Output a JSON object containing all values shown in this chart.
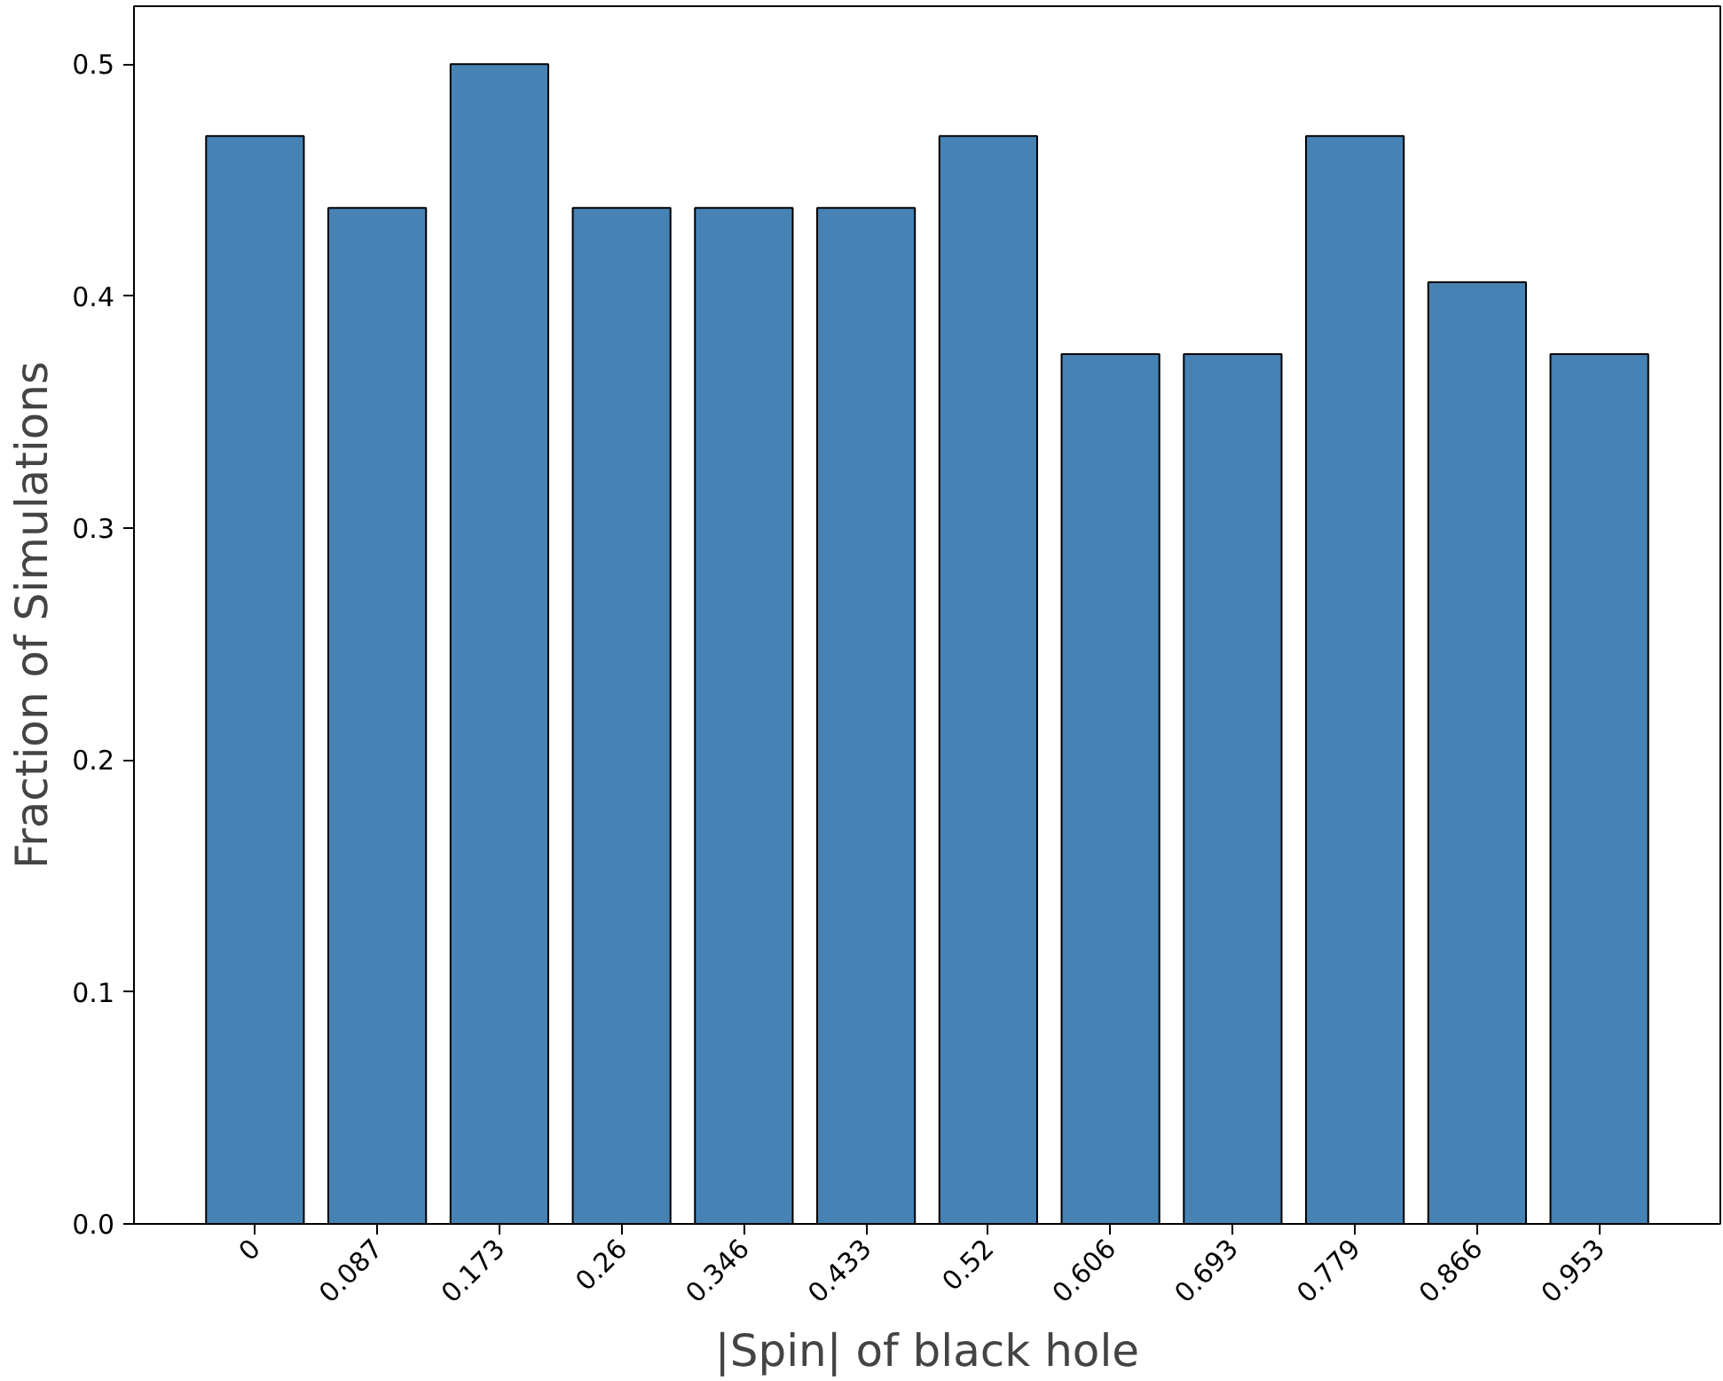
{
  "chart_data": {
    "type": "bar",
    "xlabel": "|Spin| of black hole",
    "ylabel": "Fraction of Simulations",
    "categories": [
      "0",
      "0.087",
      "0.173",
      "0.26",
      "0.346",
      "0.433",
      "0.52",
      "0.606",
      "0.693",
      "0.779",
      "0.866",
      "0.953"
    ],
    "values": [
      0.469,
      0.438,
      0.5,
      0.438,
      0.438,
      0.438,
      0.469,
      0.375,
      0.375,
      0.469,
      0.406,
      0.375
    ],
    "color": "#4682b4",
    "ylim": [
      0,
      0.525
    ],
    "yticks": [
      "0.0",
      0.1,
      0.2,
      0.3,
      0.4,
      0.5
    ],
    "grid": false
  }
}
